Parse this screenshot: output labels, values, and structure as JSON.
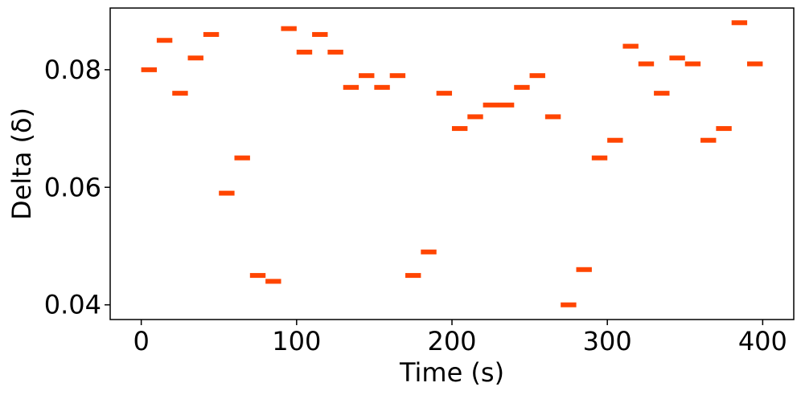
{
  "chart_data": {
    "type": "scatter",
    "title": "",
    "xlabel": "Time (s)",
    "ylabel": "Delta (δ)",
    "xlim": [
      -20,
      420
    ],
    "ylim": [
      0.0375,
      0.0905
    ],
    "xticks": [
      0,
      100,
      200,
      300,
      400
    ],
    "xtick_labels": [
      "0",
      "100",
      "200",
      "300",
      "400"
    ],
    "yticks": [
      0.04,
      0.06,
      0.08
    ],
    "ytick_labels": [
      "0.04",
      "0.06",
      "0.08"
    ],
    "grid": false,
    "marker": "horizontal-dash",
    "color": "#FF4500",
    "series": [
      {
        "points": [
          {
            "x": 5,
            "y": 0.08
          },
          {
            "x": 15,
            "y": 0.085
          },
          {
            "x": 25,
            "y": 0.076
          },
          {
            "x": 35,
            "y": 0.082
          },
          {
            "x": 45,
            "y": 0.086
          },
          {
            "x": 55,
            "y": 0.059
          },
          {
            "x": 65,
            "y": 0.065
          },
          {
            "x": 75,
            "y": 0.045
          },
          {
            "x": 85,
            "y": 0.044
          },
          {
            "x": 95,
            "y": 0.087
          },
          {
            "x": 105,
            "y": 0.083
          },
          {
            "x": 115,
            "y": 0.086
          },
          {
            "x": 125,
            "y": 0.083
          },
          {
            "x": 135,
            "y": 0.077
          },
          {
            "x": 145,
            "y": 0.079
          },
          {
            "x": 155,
            "y": 0.077
          },
          {
            "x": 165,
            "y": 0.079
          },
          {
            "x": 175,
            "y": 0.045
          },
          {
            "x": 185,
            "y": 0.049
          },
          {
            "x": 195,
            "y": 0.076
          },
          {
            "x": 205,
            "y": 0.07
          },
          {
            "x": 215,
            "y": 0.072
          },
          {
            "x": 225,
            "y": 0.074
          },
          {
            "x": 235,
            "y": 0.074
          },
          {
            "x": 245,
            "y": 0.077
          },
          {
            "x": 255,
            "y": 0.079
          },
          {
            "x": 265,
            "y": 0.072
          },
          {
            "x": 275,
            "y": 0.04
          },
          {
            "x": 285,
            "y": 0.046
          },
          {
            "x": 295,
            "y": 0.065
          },
          {
            "x": 305,
            "y": 0.068
          },
          {
            "x": 315,
            "y": 0.084
          },
          {
            "x": 325,
            "y": 0.081
          },
          {
            "x": 335,
            "y": 0.076
          },
          {
            "x": 345,
            "y": 0.082
          },
          {
            "x": 355,
            "y": 0.081
          },
          {
            "x": 365,
            "y": 0.068
          },
          {
            "x": 375,
            "y": 0.07
          },
          {
            "x": 385,
            "y": 0.088
          },
          {
            "x": 395,
            "y": 0.081
          }
        ]
      }
    ]
  }
}
